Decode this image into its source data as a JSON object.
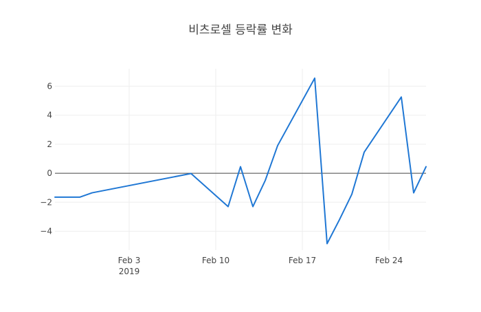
{
  "chart_data": {
    "type": "line",
    "title": "비츠로셀 등락률 변화",
    "xlabel": "",
    "ylabel": "",
    "x_axis": {
      "type": "date",
      "range": [
        "2019-01-28",
        "2019-02-27"
      ],
      "ticks": [
        {
          "date": "2019-02-03",
          "label": "Feb 3",
          "sublabel": "2019"
        },
        {
          "date": "2019-02-10",
          "label": "Feb 10",
          "sublabel": ""
        },
        {
          "date": "2019-02-17",
          "label": "Feb 17",
          "sublabel": ""
        },
        {
          "date": "2019-02-24",
          "label": "Feb 24",
          "sublabel": ""
        }
      ]
    },
    "y_axis": {
      "range": [
        -5.3,
        7.2
      ],
      "ticks": [
        {
          "value": 6,
          "label": "6"
        },
        {
          "value": 4,
          "label": "4"
        },
        {
          "value": 2,
          "label": "2"
        },
        {
          "value": 0,
          "label": "0"
        },
        {
          "value": -2,
          "label": "−2"
        },
        {
          "value": -4,
          "label": "−4"
        }
      ]
    },
    "grid": true,
    "zero_line": true,
    "line_color": "#1f77d4",
    "series": [
      {
        "x": [
          "2019-01-28",
          "2019-01-30",
          "2019-01-31",
          "2019-02-08",
          "2019-02-11",
          "2019-02-12",
          "2019-02-13",
          "2019-02-14",
          "2019-02-15",
          "2019-02-18",
          "2019-02-19",
          "2019-02-20",
          "2019-02-21",
          "2019-02-22",
          "2019-02-25",
          "2019-02-26",
          "2019-02-27"
        ],
        "values": [
          -1.65,
          -1.65,
          -1.35,
          -0.02,
          -2.3,
          0.45,
          -2.3,
          -0.5,
          1.9,
          6.55,
          -4.85,
          -3.2,
          -1.45,
          1.45,
          5.25,
          -1.35,
          0.45
        ]
      }
    ]
  }
}
